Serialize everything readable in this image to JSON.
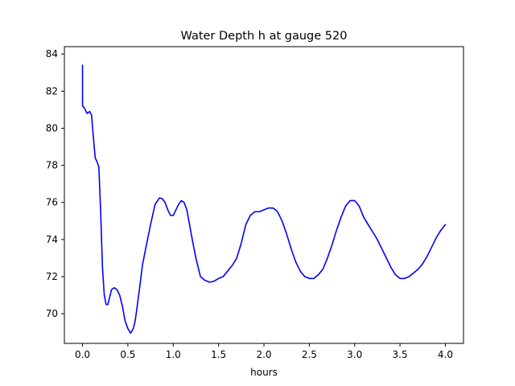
{
  "chart_data": {
    "type": "line",
    "title": "Water Depth h at gauge 520",
    "xlabel": "hours",
    "ylabel": "",
    "xlim": [
      -0.2,
      4.2
    ],
    "ylim": [
      68.4,
      84.4
    ],
    "xticks": [
      0.0,
      0.5,
      1.0,
      1.5,
      2.0,
      2.5,
      3.0,
      3.5,
      4.0
    ],
    "xtick_labels": [
      "0.0",
      "0.5",
      "1.0",
      "1.5",
      "2.0",
      "2.5",
      "3.0",
      "3.5",
      "4.0"
    ],
    "yticks": [
      70,
      72,
      74,
      76,
      78,
      80,
      82,
      84
    ],
    "ytick_labels": [
      "70",
      "72",
      "74",
      "76",
      "78",
      "80",
      "82",
      "84"
    ],
    "grid": false,
    "series": [
      {
        "color": "#0000ff",
        "x": [
          0.0,
          0.0,
          0.0,
          0.02,
          0.05,
          0.08,
          0.1,
          0.12,
          0.14,
          0.16,
          0.18,
          0.2,
          0.22,
          0.24,
          0.26,
          0.28,
          0.3,
          0.32,
          0.35,
          0.38,
          0.41,
          0.44,
          0.47,
          0.5,
          0.53,
          0.56,
          0.58,
          0.6,
          0.63,
          0.66,
          0.7,
          0.75,
          0.8,
          0.85,
          0.88,
          0.91,
          0.94,
          0.97,
          1.0,
          1.03,
          1.06,
          1.09,
          1.12,
          1.15,
          1.18,
          1.21,
          1.25,
          1.3,
          1.35,
          1.4,
          1.45,
          1.5,
          1.55,
          1.6,
          1.65,
          1.7,
          1.75,
          1.8,
          1.85,
          1.9,
          1.95,
          2.0,
          2.05,
          2.1,
          2.15,
          2.2,
          2.25,
          2.3,
          2.35,
          2.4,
          2.45,
          2.5,
          2.55,
          2.6,
          2.65,
          2.7,
          2.75,
          2.8,
          2.85,
          2.9,
          2.95,
          3.0,
          3.05,
          3.1,
          3.15,
          3.2,
          3.25,
          3.3,
          3.35,
          3.4,
          3.45,
          3.5,
          3.55,
          3.6,
          3.65,
          3.7,
          3.75,
          3.8,
          3.85,
          3.9,
          3.95,
          4.0
        ],
        "values": [
          83.4,
          82.0,
          81.2,
          81.1,
          80.8,
          80.9,
          80.7,
          79.5,
          78.4,
          78.2,
          77.9,
          75.5,
          72.5,
          71.0,
          70.5,
          70.5,
          70.9,
          71.3,
          71.4,
          71.3,
          71.0,
          70.4,
          69.6,
          69.2,
          68.95,
          69.2,
          69.6,
          70.3,
          71.4,
          72.6,
          73.6,
          74.8,
          75.9,
          76.25,
          76.2,
          76.0,
          75.6,
          75.3,
          75.3,
          75.6,
          75.9,
          76.1,
          76.0,
          75.6,
          74.8,
          74.0,
          73.0,
          72.0,
          71.8,
          71.7,
          71.75,
          71.9,
          72.0,
          72.3,
          72.6,
          73.0,
          73.8,
          74.8,
          75.3,
          75.5,
          75.5,
          75.6,
          75.7,
          75.7,
          75.5,
          75.0,
          74.3,
          73.5,
          72.8,
          72.3,
          72.0,
          71.9,
          71.9,
          72.1,
          72.4,
          73.0,
          73.7,
          74.5,
          75.2,
          75.8,
          76.1,
          76.1,
          75.8,
          75.2,
          74.8,
          74.4,
          74.0,
          73.5,
          73.0,
          72.5,
          72.1,
          71.9,
          71.9,
          72.0,
          72.2,
          72.4,
          72.7,
          73.1,
          73.6,
          74.1,
          74.5,
          74.8
        ]
      }
    ]
  }
}
